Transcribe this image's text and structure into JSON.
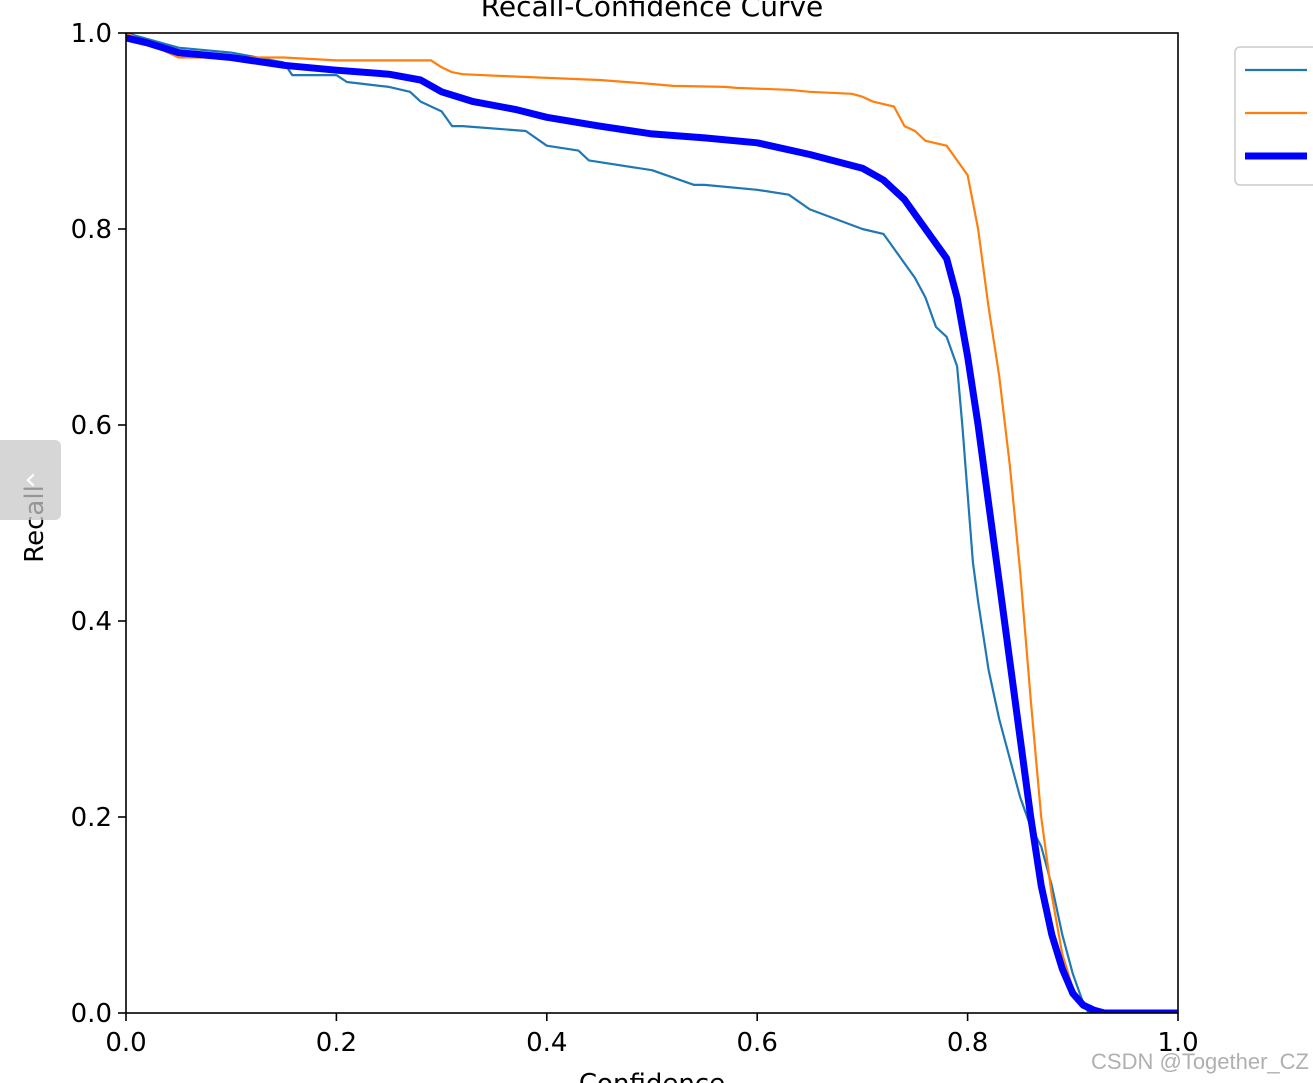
{
  "watermark": "CSDN @Together_CZ",
  "nav": {
    "back_icon_glyph": "‹"
  },
  "chart_data": {
    "type": "line",
    "title": "Recall-Confidence Curve",
    "xlabel": "Confidence",
    "ylabel": "Recall",
    "xlim": [
      0,
      1
    ],
    "ylim": [
      0,
      1
    ],
    "xticks": [
      "0.0",
      "0.2",
      "0.4",
      "0.6",
      "0.8",
      "1.0"
    ],
    "yticks": [
      "0.0",
      "0.2",
      "0.4",
      "0.6",
      "0.8",
      "1.0"
    ],
    "grid": false,
    "legend": "top-right",
    "series": [
      {
        "color": "#1f77b4",
        "x": [
          0.0,
          0.05,
          0.1,
          0.15,
          0.158,
          0.2,
          0.21,
          0.25,
          0.27,
          0.28,
          0.3,
          0.31,
          0.32,
          0.38,
          0.4,
          0.43,
          0.44,
          0.5,
          0.54,
          0.55,
          0.6,
          0.63,
          0.65,
          0.7,
          0.72,
          0.73,
          0.75,
          0.76,
          0.77,
          0.78,
          0.79,
          0.795,
          0.8,
          0.805,
          0.81,
          0.82,
          0.83,
          0.84,
          0.85,
          0.86,
          0.87,
          0.88,
          0.89,
          0.9,
          0.91,
          0.915,
          1.0
        ],
        "y": [
          1.0,
          0.985,
          0.98,
          0.97,
          0.957,
          0.957,
          0.95,
          0.945,
          0.94,
          0.93,
          0.92,
          0.905,
          0.905,
          0.9,
          0.885,
          0.88,
          0.87,
          0.86,
          0.845,
          0.845,
          0.84,
          0.835,
          0.82,
          0.8,
          0.795,
          0.78,
          0.75,
          0.73,
          0.7,
          0.69,
          0.66,
          0.6,
          0.53,
          0.46,
          0.42,
          0.35,
          0.3,
          0.26,
          0.22,
          0.19,
          0.17,
          0.13,
          0.08,
          0.04,
          0.01,
          0.0,
          0.0
        ]
      },
      {
        "color": "#ff7f0e",
        "x": [
          0.0,
          0.04,
          0.05,
          0.15,
          0.2,
          0.29,
          0.3,
          0.31,
          0.32,
          0.36,
          0.45,
          0.5,
          0.52,
          0.57,
          0.58,
          0.63,
          0.65,
          0.69,
          0.7,
          0.71,
          0.73,
          0.74,
          0.75,
          0.76,
          0.78,
          0.79,
          0.8,
          0.81,
          0.82,
          0.83,
          0.84,
          0.85,
          0.86,
          0.87,
          0.88,
          0.89,
          0.9,
          0.91,
          0.92,
          1.0
        ],
        "y": [
          1.0,
          0.98,
          0.975,
          0.975,
          0.972,
          0.972,
          0.965,
          0.96,
          0.958,
          0.956,
          0.952,
          0.948,
          0.946,
          0.945,
          0.944,
          0.942,
          0.94,
          0.938,
          0.935,
          0.93,
          0.925,
          0.905,
          0.9,
          0.89,
          0.885,
          0.87,
          0.855,
          0.8,
          0.72,
          0.65,
          0.56,
          0.45,
          0.32,
          0.2,
          0.12,
          0.06,
          0.025,
          0.008,
          0.0,
          0.0
        ]
      },
      {
        "color": "#0000ff",
        "x": [
          0.0,
          0.02,
          0.05,
          0.1,
          0.15,
          0.2,
          0.25,
          0.28,
          0.3,
          0.33,
          0.37,
          0.4,
          0.45,
          0.5,
          0.55,
          0.6,
          0.65,
          0.7,
          0.72,
          0.74,
          0.76,
          0.78,
          0.79,
          0.8,
          0.81,
          0.82,
          0.83,
          0.84,
          0.85,
          0.86,
          0.87,
          0.88,
          0.89,
          0.9,
          0.91,
          0.92,
          0.93,
          0.95,
          1.0
        ],
        "y": [
          0.995,
          0.99,
          0.98,
          0.975,
          0.967,
          0.962,
          0.958,
          0.952,
          0.94,
          0.93,
          0.922,
          0.914,
          0.905,
          0.897,
          0.893,
          0.888,
          0.876,
          0.862,
          0.85,
          0.83,
          0.8,
          0.77,
          0.73,
          0.67,
          0.6,
          0.52,
          0.44,
          0.36,
          0.28,
          0.2,
          0.13,
          0.08,
          0.045,
          0.02,
          0.008,
          0.003,
          0.0,
          0.0,
          0.0
        ]
      }
    ]
  }
}
